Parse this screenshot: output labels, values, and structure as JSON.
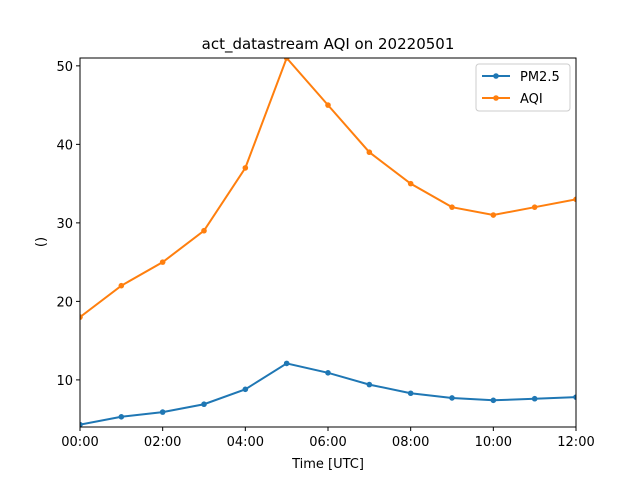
{
  "chart_data": {
    "type": "line",
    "title": "act_datastream AQI on 20220501",
    "xlabel": "Time [UTC]",
    "ylabel": "()",
    "x": [
      "00:00",
      "01:00",
      "02:00",
      "03:00",
      "04:00",
      "05:00",
      "06:00",
      "07:00",
      "08:00",
      "09:00",
      "10:00",
      "11:00",
      "12:00"
    ],
    "x_ticks": [
      "00:00",
      "02:00",
      "04:00",
      "06:00",
      "08:00",
      "10:00",
      "12:00"
    ],
    "xlim": [
      0,
      12
    ],
    "ylim": [
      4,
      51
    ],
    "y_ticks": [
      10,
      20,
      30,
      40,
      50
    ],
    "grid": false,
    "legend_position": "top-right",
    "series": [
      {
        "name": "PM2.5",
        "color": "#1f77b4",
        "values": [
          4.3,
          5.3,
          5.9,
          6.9,
          8.8,
          12.1,
          10.9,
          9.4,
          8.3,
          7.7,
          7.4,
          7.6,
          7.8
        ]
      },
      {
        "name": "AQI",
        "color": "#ff7f0e",
        "values": [
          18,
          22,
          25,
          29,
          37,
          51,
          45,
          39,
          35,
          32,
          31,
          32,
          33
        ]
      }
    ]
  }
}
